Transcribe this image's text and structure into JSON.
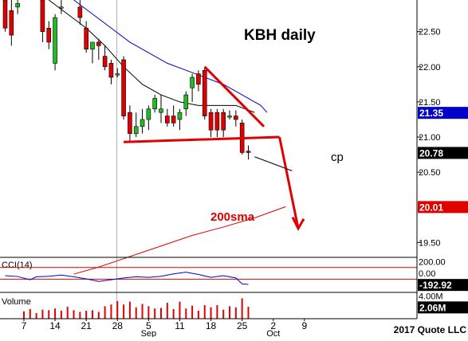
{
  "chart_data": [
    {
      "type": "candlestick",
      "title": "KBH daily",
      "annotations": [
        "200sma",
        "cp"
      ],
      "ylim": [
        19.3,
        22.95
      ],
      "y_ticks": [
        22.5,
        22.0,
        21.5,
        21.0,
        20.5,
        19.5
      ],
      "y_tick_labels": [
        "22.50",
        "22.00",
        "21.50",
        "21.00",
        "20.50",
        "19.50"
      ],
      "price_labels": [
        {
          "label": "21.35",
          "value": 21.35,
          "color": "#0000c8"
        },
        {
          "label": "20.78",
          "value": 20.78,
          "color": "#000000"
        },
        {
          "label": "20.01",
          "value": 20.01,
          "color": "#e00000"
        }
      ],
      "x_tick_labels": [
        {
          "day": 3,
          "label": "7"
        },
        {
          "day": 8,
          "label": "14"
        },
        {
          "day": 13,
          "label": "21"
        },
        {
          "day": 18,
          "label": "28"
        },
        {
          "day": 23,
          "label": "5"
        },
        {
          "day": 28,
          "label": "11"
        },
        {
          "day": 33,
          "label": "18"
        },
        {
          "day": 38,
          "label": "25"
        },
        {
          "day": 43,
          "label": "2"
        },
        {
          "day": 48,
          "label": "9"
        }
      ],
      "month_labels": [
        {
          "day": 23,
          "label": "Sep"
        },
        {
          "day": 43,
          "label": "Oct"
        }
      ],
      "candles": [
        {
          "day": 0,
          "open": 22.95,
          "high": 22.95,
          "low": 22.5,
          "close": 22.55
        },
        {
          "day": 1,
          "open": 22.8,
          "high": 22.95,
          "low": 22.3,
          "close": 22.45
        },
        {
          "day": 2,
          "open": 22.85,
          "high": 22.95,
          "low": 22.75,
          "close": 22.9
        },
        {
          "day": 6,
          "open": 22.95,
          "high": 22.95,
          "low": 22.35,
          "close": 22.5
        },
        {
          "day": 7,
          "open": 22.55,
          "high": 22.65,
          "low": 22.25,
          "close": 22.35
        },
        {
          "day": 8,
          "open": 22.05,
          "high": 22.75,
          "low": 21.95,
          "close": 22.7
        },
        {
          "day": 9,
          "open": 22.85,
          "high": 22.95,
          "low": 22.75,
          "close": 22.85
        },
        {
          "day": 12,
          "open": 22.85,
          "high": 22.95,
          "low": 22.6,
          "close": 22.7
        },
        {
          "day": 13,
          "open": 22.55,
          "high": 22.65,
          "low": 22.2,
          "close": 22.25
        },
        {
          "day": 14,
          "open": 22.25,
          "high": 22.35,
          "low": 22.05,
          "close": 22.35
        },
        {
          "day": 15,
          "open": 22.35,
          "high": 22.4,
          "low": 22.1,
          "close": 22.3
        },
        {
          "day": 16,
          "open": 22.15,
          "high": 22.3,
          "low": 21.95,
          "close": 22.0
        },
        {
          "day": 17,
          "open": 22.05,
          "high": 22.1,
          "low": 21.75,
          "close": 21.85
        },
        {
          "day": 18,
          "open": 21.9,
          "high": 21.98,
          "low": 21.85,
          "close": 21.9
        },
        {
          "day": 19,
          "open": 22.1,
          "high": 22.15,
          "low": 21.25,
          "close": 21.3
        },
        {
          "day": 20,
          "open": 21.35,
          "high": 21.45,
          "low": 20.95,
          "close": 21.05
        },
        {
          "day": 21,
          "open": 21.05,
          "high": 21.35,
          "low": 21.0,
          "close": 21.15
        },
        {
          "day": 22,
          "open": 21.15,
          "high": 21.4,
          "low": 21.05,
          "close": 21.25
        },
        {
          "day": 23,
          "open": 21.25,
          "high": 21.45,
          "low": 21.1,
          "close": 21.4
        },
        {
          "day": 24,
          "open": 21.4,
          "high": 21.6,
          "low": 21.35,
          "close": 21.55
        },
        {
          "day": 25,
          "open": 21.35,
          "high": 21.6,
          "low": 21.2,
          "close": 21.4
        },
        {
          "day": 26,
          "open": 21.3,
          "high": 21.4,
          "low": 21.15,
          "close": 21.2
        },
        {
          "day": 27,
          "open": 21.3,
          "high": 21.45,
          "low": 21.15,
          "close": 21.2
        },
        {
          "day": 28,
          "open": 21.25,
          "high": 21.4,
          "low": 21.1,
          "close": 21.35
        },
        {
          "day": 29,
          "open": 21.4,
          "high": 21.65,
          "low": 21.3,
          "close": 21.6
        },
        {
          "day": 30,
          "open": 21.7,
          "high": 21.9,
          "low": 21.5,
          "close": 21.85
        },
        {
          "day": 31,
          "open": 21.9,
          "high": 21.95,
          "low": 21.65,
          "close": 21.75
        },
        {
          "day": 32,
          "open": 21.95,
          "high": 22.0,
          "low": 21.25,
          "close": 21.3
        },
        {
          "day": 33,
          "open": 21.35,
          "high": 21.4,
          "low": 21.0,
          "close": 21.1
        },
        {
          "day": 34,
          "open": 21.35,
          "high": 21.4,
          "low": 21.0,
          "close": 21.1
        },
        {
          "day": 35,
          "open": 21.35,
          "high": 21.4,
          "low": 21.0,
          "close": 21.1
        },
        {
          "day": 36,
          "open": 21.3,
          "high": 21.38,
          "low": 21.25,
          "close": 21.3
        },
        {
          "day": 37,
          "open": 21.3,
          "high": 21.38,
          "low": 21.15,
          "close": 21.25
        },
        {
          "day": 38,
          "open": 21.2,
          "high": 21.25,
          "low": 20.75,
          "close": 20.78
        },
        {
          "day": 39,
          "open": 20.8,
          "high": 20.88,
          "low": 20.68,
          "close": 20.78
        }
      ],
      "ma_fast": {
        "days": [
          7,
          10,
          13,
          16,
          19,
          22,
          25,
          28,
          31,
          34,
          37,
          40
        ],
        "values": [
          22.95,
          22.75,
          22.55,
          22.3,
          22.0,
          21.75,
          21.6,
          21.5,
          21.45,
          21.45,
          21.45,
          21.35
        ],
        "color": "#000000"
      },
      "ma_slow": {
        "days": [
          11,
          14,
          17,
          20,
          23,
          26,
          29,
          32,
          35,
          38,
          41,
          42
        ],
        "values": [
          22.95,
          22.75,
          22.55,
          22.35,
          22.2,
          22.05,
          21.95,
          21.85,
          21.75,
          21.6,
          21.45,
          21.35
        ],
        "color": "#0000c8"
      },
      "sma200": {
        "days": [
          11,
          15,
          20,
          25,
          30,
          35,
          40,
          45
        ],
        "values": [
          19.05,
          19.15,
          19.3,
          19.45,
          19.6,
          19.72,
          19.85,
          20.01
        ],
        "color": "#e00000"
      },
      "support_line": {
        "from": {
          "day": 19,
          "value": 20.93
        },
        "to": {
          "day": 44,
          "value": 21.0
        },
        "color": "#e00000"
      },
      "resistance_line": {
        "from": {
          "day": 32,
          "value": 22.0
        },
        "to": {
          "day": 41.5,
          "value": 21.15
        },
        "color": "#e00000"
      },
      "projection_arrow": {
        "from": {
          "day": 44,
          "value": 21.0
        },
        "to": {
          "day": 47,
          "value": 19.7
        },
        "color": "#e00000"
      },
      "cp_pointer": {
        "from": {
          "day": 40,
          "value": 20.72
        },
        "to": {
          "day": 46,
          "value": 20.52
        }
      }
    },
    {
      "type": "line",
      "title": "CCI(14)",
      "ylim": [
        -300,
        260
      ],
      "y_tick_labels": [
        {
          "value": 200,
          "label": "200.00"
        },
        {
          "value": 0,
          "label": "0.00"
        }
      ],
      "value_label": {
        "label": "-192.92",
        "value": -192.92
      },
      "reference_lines": [
        100,
        -100
      ],
      "series": [
        {
          "color": "#0000c8",
          "x": [
            0,
            2,
            4,
            5,
            7,
            9,
            11,
            13,
            15,
            17,
            19,
            21,
            23,
            25,
            27,
            29,
            31,
            33,
            35,
            37,
            38,
            39
          ],
          "y": [
            -40,
            -55,
            -110,
            -60,
            -50,
            -30,
            -60,
            -95,
            -140,
            -110,
            -80,
            -60,
            -70,
            -50,
            -10,
            20,
            -20,
            -70,
            -40,
            -80,
            -180,
            -190
          ]
        }
      ]
    },
    {
      "type": "bar",
      "title": "Volume",
      "ylim": [
        0,
        4.5
      ],
      "y_tick_labels": [
        {
          "value": 4,
          "label": "4.00M"
        }
      ],
      "value_label": {
        "label": "2.06M",
        "value": 2.06
      },
      "x": [
        3,
        4,
        5,
        6,
        7,
        8,
        9,
        10,
        11,
        12,
        13,
        14,
        15,
        16,
        17,
        18,
        19,
        20,
        21,
        22,
        23,
        24,
        25,
        26,
        27,
        28,
        29,
        30,
        31,
        32,
        33,
        34,
        35,
        36,
        37,
        38,
        39
      ],
      "values": [
        1.3,
        1.7,
        1.0,
        1.6,
        1.5,
        1.8,
        1.4,
        2.1,
        1.5,
        1.2,
        1.4,
        1.5,
        1.2,
        2.2,
        2.5,
        3.1,
        2.5,
        3.0,
        2.0,
        2.6,
        2.2,
        1.8,
        1.9,
        2.8,
        1.7,
        3.0,
        1.8,
        2.3,
        1.4,
        2.4,
        2.0,
        2.4,
        1.6,
        2.2,
        2.0,
        3.6,
        2.1
      ],
      "color": "#e00000"
    }
  ],
  "footer": {
    "copyright": "2017 Quote LLC"
  },
  "theme": {
    "red": "#e00000",
    "blue": "#0000c8",
    "green": "#22bb22",
    "grid": "#b0b0b0"
  }
}
